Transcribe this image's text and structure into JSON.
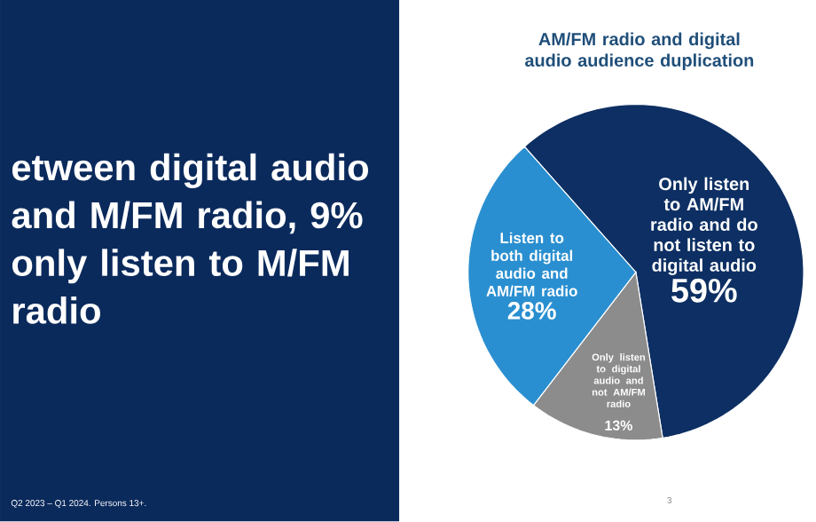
{
  "chart_data": {
    "type": "pie",
    "title": "AM/FM radio and digital audio audience duplication",
    "categories": [
      "Only listen to AM/FM radio and do not listen to digital audio",
      "Only listen to digital audio and not AM/FM radio",
      "Listen to both digital audio and AM/FM radio"
    ],
    "values": [
      59,
      13,
      28
    ],
    "value_labels": [
      "59%",
      "13%",
      "28%"
    ],
    "colors": [
      "#0d2f63",
      "#8c8c8c",
      "#2a8fd0"
    ],
    "annotations": [
      "etween digital audio and M/FM radio, 9% only listen to M/FM radio",
      "Q2 2023 – Q1 2024. Persons 13+.",
      "3"
    ]
  }
}
